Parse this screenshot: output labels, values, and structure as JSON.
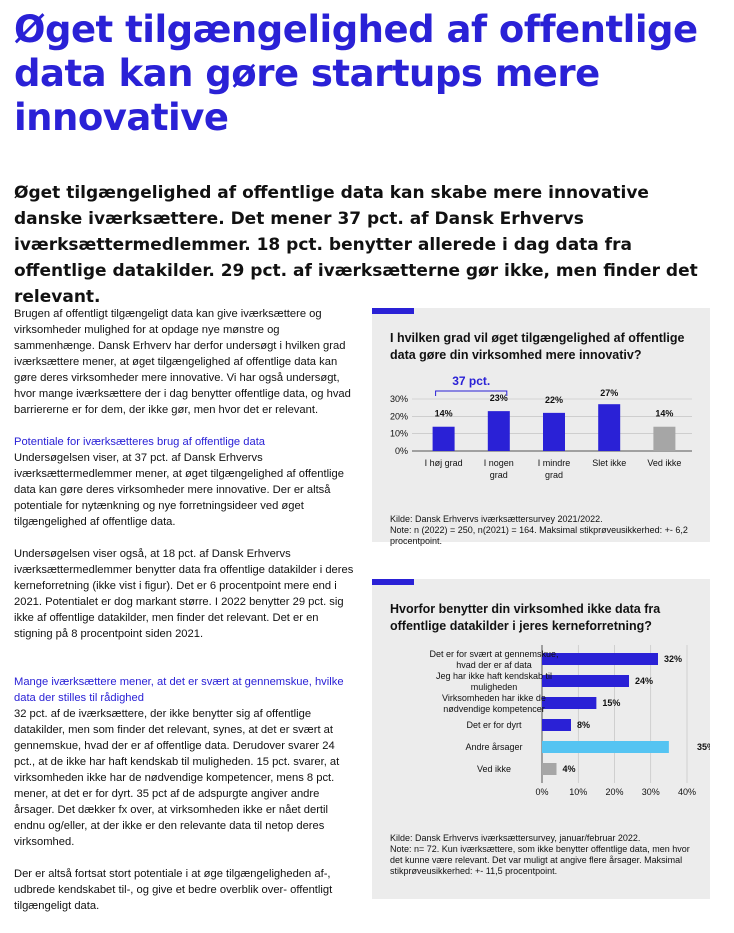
{
  "title": "Øget tilgængelighed af offentlige data kan gøre startups mere innovative",
  "intro": "Øget tilgængelighed af offentlige data kan skabe mere innovative danske iværksættere. Det mener 37 pct. af Dansk Erhvervs iværksættermedlemmer. 18 pct. benytter allerede i dag data fra offentlige datakilder. 29 pct. af iværksætterne gør ikke, men finder det relevant.",
  "body": {
    "p1": "Brugen af offentligt tilgængeligt data kan give iværksættere og virksomheder mulighed for at opdage nye mønstre og sammenhænge. Dansk Erhverv har derfor undersøgt i hvilken grad iværksættere mener, at øget tilgængelighed af offentlige data kan gøre deres virksomheder mere innovative. Vi har også undersøgt, hvor mange iværksættere der i dag benytter offentlige data, og hvad barriererne er for dem, der ikke gør, men hvor det er relevant.",
    "h1": "Potentiale for iværksætteres brug af offentlige data",
    "p2": "Undersøgelsen viser, at 37 pct. af Dansk Erhvervs iværksættermedlemmer mener, at øget tilgængelighed af offentlige data kan gøre deres virksomheder mere innovative. Der er altså potentiale for nytænkning og nye forretningsideer ved øget tilgængelighed af offentlige data.",
    "p3": "Undersøgelsen viser også, at 18 pct. af Dansk Erhvervs iværksættermedlemmer benytter data fra offentlige datakilder i deres kerneforretning (ikke vist i figur). Det er 6 procentpoint mere end i 2021. Potentialet er dog markant større. I 2022 benytter 29 pct. sig ikke af offentlige datakilder, men finder det relevant. Det er en stigning på 8 procentpoint siden 2021.",
    "h2": "Mange iværksættere mener, at det er svært at gennemskue, hvilke data der stilles til rådighed",
    "p4": "32 pct. af de iværksættere, der ikke benytter sig af offentlige datakilder, men som finder det relevant, synes, at det er svært at gennemskue, hvad der er af offentlige data. Derudover svarer 24 pct., at de ikke har haft kendskab til muligheden. 15 pct. svarer, at virksomheden ikke har de nødvendige kompetencer, mens 8 pct. mener, at det er for dyrt. 35 pct af de adspurgte angiver andre årsager. Det dækker fx over, at virksomheden ikke er nået dertil endnu og/eller, at der ikke er den relevante data til netop deres virksomhed.",
    "p5": "Der er altså fortsat stort potentiale i at øge tilgængeligheden af-, udbrede kendskabet til-, og give et bedre overblik over- offentligt tilgængeligt data."
  },
  "chart_data": [
    {
      "type": "bar",
      "title": "I hvilken grad vil øget tilgængelighed af offentlige data gøre din virksomhed mere innovativ?",
      "categories": [
        "I høj grad",
        "I nogen grad",
        "I mindre grad",
        "Slet ikke",
        "Ved ikke"
      ],
      "values": [
        14,
        23,
        22,
        27,
        14
      ],
      "value_labels": [
        "14%",
        "23%",
        "22%",
        "27%",
        "14%"
      ],
      "colors": [
        "#2a21d6",
        "#2a21d6",
        "#2a21d6",
        "#2a21d6",
        "#a6a6a6"
      ],
      "yticks": [
        "0%",
        "10%",
        "20%",
        "30%"
      ],
      "ylim": [
        0,
        30
      ],
      "bracket_label": "37 pct.",
      "source": "Kilde: Dansk Erhvervs iværksættersurvey 2021/2022.",
      "note": "Note: n (2022) = 250, n(2021) = 164. Maksimal stikprøveusikkerhed: +- 6,2 procentpoint."
    },
    {
      "type": "bar",
      "orientation": "horizontal",
      "title": "Hvorfor benytter din virksomhed ikke data fra offentlige datakilder i jeres kerneforretning?",
      "categories": [
        "Det er for svært at gennemskue, hvad der er af data",
        "Jeg har ikke haft kendskab til muligheden",
        "Virksomheden har ikke de nødvendige kompetencer",
        "Det er for dyrt",
        "Andre årsager",
        "Ved ikke"
      ],
      "values": [
        32,
        24,
        15,
        8,
        35,
        4
      ],
      "value_labels": [
        "32%",
        "24%",
        "15%",
        "8%",
        "35%",
        "4%"
      ],
      "colors": [
        "#2a21d6",
        "#2a21d6",
        "#2a21d6",
        "#2a21d6",
        "#55c4f2",
        "#a6a6a6"
      ],
      "xticks": [
        "0%",
        "10%",
        "20%",
        "30%",
        "40%"
      ],
      "xlim": [
        0,
        40
      ],
      "source": "Kilde: Dansk Erhvervs iværksættersurvey, januar/februar 2022.",
      "note": "Note: n= 72. Kun iværksættere, som ikke benytter offentlige data, men hvor det kunne være relevant. Det var muligt at angive flere årsager. Maksimal stikprøveusikkerhed: +- 11,5 procentpoint."
    }
  ]
}
